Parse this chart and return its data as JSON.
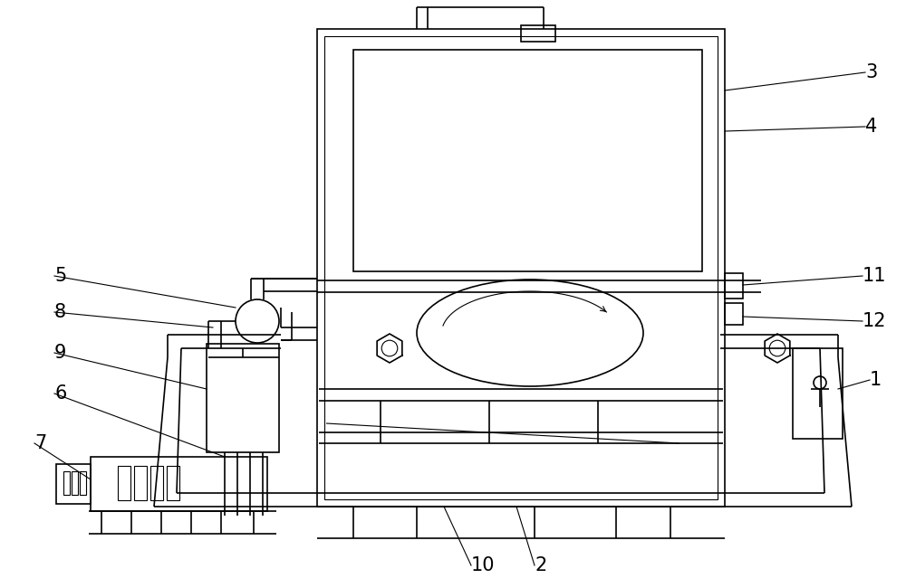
{
  "bg_color": "#ffffff",
  "line_color": "#000000",
  "lw": 1.2,
  "lw_thin": 0.8,
  "lw_thick": 1.5
}
